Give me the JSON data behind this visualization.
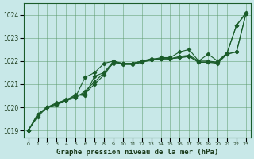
{
  "title": "Graphe pression niveau de la mer (hPa)",
  "xlabel_hours": [
    0,
    1,
    2,
    3,
    4,
    5,
    6,
    7,
    8,
    9,
    10,
    11,
    12,
    13,
    14,
    15,
    16,
    17,
    18,
    19,
    20,
    21,
    22,
    23
  ],
  "ylim": [
    1018.7,
    1024.5
  ],
  "yticks": [
    1019,
    1020,
    1021,
    1022,
    1023,
    1024
  ],
  "background_color": "#c8e8e8",
  "grid_color": "#5a9a6a",
  "line_color": "#1a5c2a",
  "series": [
    [
      1019.0,
      1019.6,
      1020.0,
      1020.1,
      1020.3,
      1020.4,
      1020.7,
      1021.1,
      1021.5,
      1021.9,
      1021.9,
      1021.9,
      1021.95,
      1022.05,
      1022.1,
      1022.1,
      1022.15,
      1022.2,
      1021.95,
      1021.95,
      1021.95,
      1022.3,
      1022.4,
      1024.05
    ],
    [
      1019.0,
      1019.7,
      1020.0,
      1020.15,
      1020.35,
      1020.45,
      1021.3,
      1021.5,
      1021.9,
      1022.0,
      1021.85,
      1021.85,
      1021.95,
      1022.05,
      1022.1,
      1022.1,
      1022.2,
      1022.25,
      1022.0,
      1022.0,
      1021.95,
      1022.35,
      1023.55,
      1024.05
    ],
    [
      1019.0,
      1019.7,
      1020.0,
      1020.15,
      1020.3,
      1020.55,
      1020.5,
      1021.35,
      1021.5,
      1022.0,
      1021.9,
      1021.9,
      1022.0,
      1022.05,
      1022.15,
      1022.15,
      1022.4,
      1022.5,
      1022.0,
      1022.3,
      1022.0,
      1022.35,
      1023.55,
      1024.1
    ],
    [
      1019.0,
      1019.65,
      1020.0,
      1020.2,
      1020.3,
      1020.5,
      1020.6,
      1021.0,
      1021.4,
      1021.95,
      1021.9,
      1021.9,
      1022.0,
      1022.1,
      1022.1,
      1022.1,
      1022.15,
      1022.2,
      1021.95,
      1021.95,
      1021.9,
      1022.3,
      1022.4,
      1024.05
    ]
  ]
}
